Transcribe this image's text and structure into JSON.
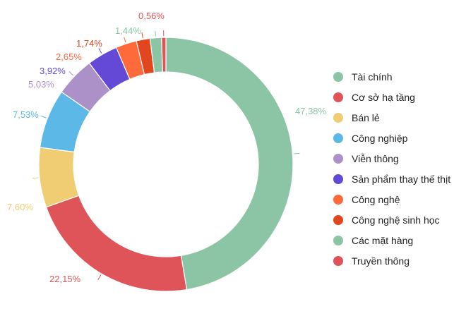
{
  "chart_data": {
    "type": "pie",
    "variant": "donut",
    "title": "",
    "legend_position": "right",
    "categories": [
      "Tài chính",
      "Cơ sở hạ tầng",
      "Bán lẻ",
      "Công nghiệp",
      "Viễn thông",
      "Sản phẩm thay thế thịt",
      "Công nghệ",
      "Công nghệ sinh học",
      "Các mặt hàng",
      "Truyền thông"
    ],
    "values": [
      47.38,
      22.15,
      7.6,
      7.53,
      5.03,
      3.92,
      2.65,
      1.74,
      1.44,
      0.56
    ],
    "labels": [
      "47,38%",
      "22,15%",
      "7,60%",
      "7,53%",
      "5,03%",
      "3,92%",
      "2,65%",
      "1,74%",
      "1,44%",
      "0,56%"
    ],
    "colors": [
      "#8cc5a5",
      "#df5458",
      "#f0cd72",
      "#5cb8e6",
      "#ab91c8",
      "#6448d6",
      "#ff6a3a",
      "#e2461f",
      "#8cc5a5",
      "#df5458"
    ]
  }
}
